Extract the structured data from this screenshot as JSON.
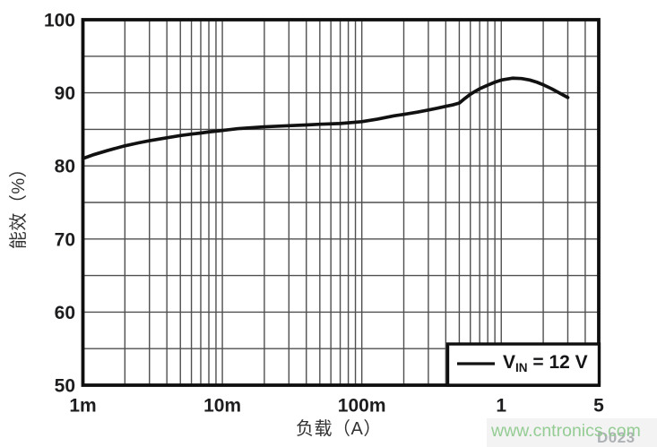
{
  "chart_data": {
    "type": "line",
    "title": "",
    "xlabel": "负载（A）",
    "ylabel": "能效（%）",
    "x_scale": "log",
    "xlim": [
      0.001,
      5
    ],
    "ylim": [
      50,
      100
    ],
    "y_grid_step": 5,
    "grid": "on",
    "x_ticks": [
      {
        "value": 0.001,
        "label": "1m"
      },
      {
        "value": 0.01,
        "label": "10m"
      },
      {
        "value": 0.1,
        "label": "100m"
      },
      {
        "value": 1,
        "label": "1"
      },
      {
        "value": 5,
        "label": "5"
      }
    ],
    "y_ticks": [
      {
        "value": 100,
        "label": "100"
      },
      {
        "value": 90,
        "label": "90"
      },
      {
        "value": 80,
        "label": "80"
      },
      {
        "value": 70,
        "label": "70"
      },
      {
        "value": 60,
        "label": "60"
      },
      {
        "value": 50,
        "label": "50"
      }
    ],
    "legend_position": "bottom-right",
    "series": [
      {
        "name": "VIN = 12 V",
        "points": [
          [
            0.001,
            81.0
          ],
          [
            0.0012,
            81.55
          ],
          [
            0.0015,
            82.1
          ],
          [
            0.002,
            82.75
          ],
          [
            0.0025,
            83.15
          ],
          [
            0.003,
            83.45
          ],
          [
            0.004,
            83.85
          ],
          [
            0.005,
            84.15
          ],
          [
            0.006,
            84.35
          ],
          [
            0.007,
            84.5
          ],
          [
            0.008,
            84.65
          ],
          [
            0.01,
            84.85
          ],
          [
            0.013,
            85.1
          ],
          [
            0.017,
            85.25
          ],
          [
            0.02,
            85.35
          ],
          [
            0.03,
            85.5
          ],
          [
            0.04,
            85.6
          ],
          [
            0.05,
            85.7
          ],
          [
            0.07,
            85.8
          ],
          [
            0.1,
            86.05
          ],
          [
            0.13,
            86.4
          ],
          [
            0.17,
            86.85
          ],
          [
            0.2,
            87.05
          ],
          [
            0.25,
            87.35
          ],
          [
            0.3,
            87.65
          ],
          [
            0.35,
            87.9
          ],
          [
            0.4,
            88.15
          ],
          [
            0.45,
            88.35
          ],
          [
            0.5,
            88.6
          ],
          [
            0.55,
            89.25
          ],
          [
            0.6,
            89.8
          ],
          [
            0.65,
            90.2
          ],
          [
            0.7,
            90.55
          ],
          [
            0.8,
            91.05
          ],
          [
            0.9,
            91.45
          ],
          [
            1.0,
            91.75
          ],
          [
            1.2,
            92.0
          ],
          [
            1.4,
            91.95
          ],
          [
            1.6,
            91.75
          ],
          [
            1.8,
            91.45
          ],
          [
            2.0,
            91.1
          ],
          [
            2.3,
            90.55
          ],
          [
            2.6,
            90.0
          ],
          [
            3.0,
            89.35
          ]
        ]
      }
    ]
  },
  "legend": {
    "prefix": "V",
    "sub": "IN",
    "suffix": " = 12 V"
  },
  "watermark": {
    "text": "www.cntronics.com"
  },
  "figure_code": "D023",
  "colors": {
    "curve": "#111111",
    "grid": "#4f4f4f",
    "frame": "#0f0f0f",
    "tick_text": "#1d1d1f",
    "axis_title": "#333333",
    "watermark_green": "#8cc98c",
    "figure_code_gray": "#aeb2b5"
  }
}
